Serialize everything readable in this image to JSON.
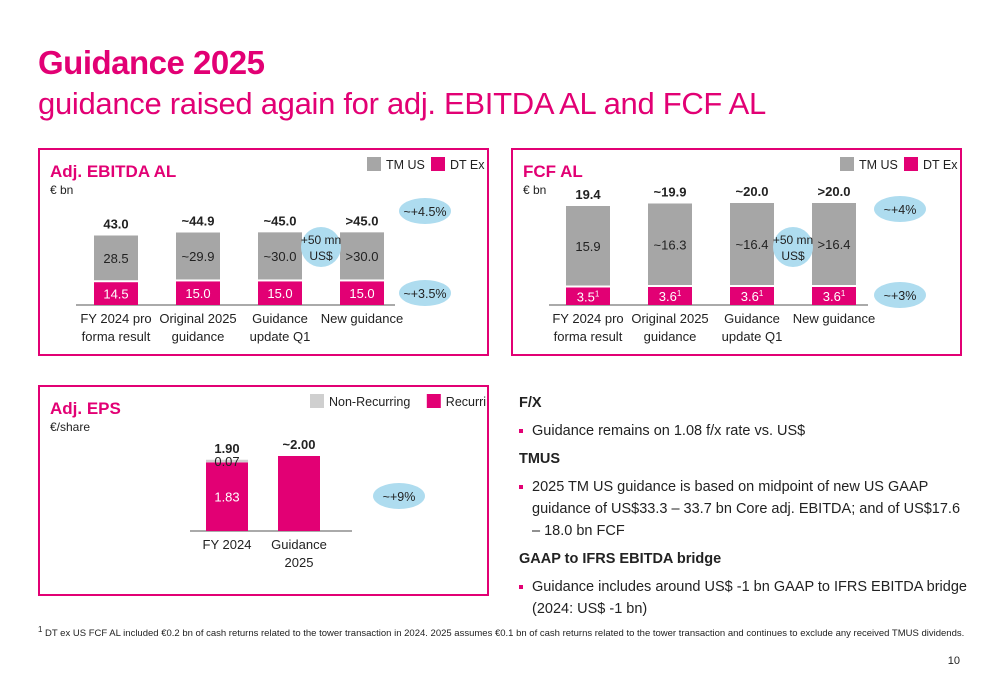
{
  "header": {
    "title": "Guidance 2025",
    "subtitle": "guidance raised again for adj. EBITDA AL and FCF AL"
  },
  "colors": {
    "magenta": "#e20074",
    "grey": "#a6a6a6",
    "light_grey": "#cfcfcf",
    "bubble": "#aedcef"
  },
  "chart_data": [
    {
      "type": "bar",
      "title": "Adj. EBITDA AL",
      "unit": "€ bn",
      "stacked": true,
      "legend": [
        "TM US",
        "DT Ex US"
      ],
      "categories": [
        "FY 2024 pro forma result",
        "Original 2025 guidance",
        "Guidance update Q1",
        "New guidance"
      ],
      "category_lines": [
        [
          "FY 2024 pro",
          "forma result"
        ],
        [
          "Original 2025",
          "guidance"
        ],
        [
          "Guidance",
          "update Q1"
        ],
        [
          "New guidance"
        ]
      ],
      "series": [
        {
          "name": "DT Ex US",
          "values": [
            14.5,
            15.0,
            15.0,
            15.0
          ],
          "labels": [
            "14.5",
            "15.0",
            "15.0",
            "15.0"
          ]
        },
        {
          "name": "TM US",
          "values": [
            28.5,
            29.9,
            30.0,
            30.0
          ],
          "labels": [
            "28.5",
            "~29.9",
            "~30.0",
            ">30.0"
          ]
        }
      ],
      "totals": [
        "43.0",
        "~44.9",
        "~45.0",
        ">45.0"
      ],
      "callout": [
        "+50 mn",
        "US$"
      ],
      "bubbles": {
        "total": "~+4.5%",
        "bottom": "~+3.5%"
      }
    },
    {
      "type": "bar",
      "title": "FCF AL",
      "unit": "€ bn",
      "stacked": true,
      "legend": [
        "TM US",
        "DT Ex US"
      ],
      "categories": [
        "FY 2024 pro forma result",
        "Original 2025 guidance",
        "Guidance update Q1",
        "New guidance"
      ],
      "category_lines": [
        [
          "FY 2024 pro",
          "forma result"
        ],
        [
          "Original 2025",
          "guidance"
        ],
        [
          "Guidance",
          "update Q1"
        ],
        [
          "New guidance"
        ]
      ],
      "series": [
        {
          "name": "DT Ex US",
          "values": [
            3.5,
            3.6,
            3.6,
            3.6
          ],
          "labels": [
            "3.5",
            "3.6",
            "3.6",
            "3.6"
          ],
          "footnote_mark": "1"
        },
        {
          "name": "TM US",
          "values": [
            15.9,
            16.3,
            16.4,
            16.4
          ],
          "labels": [
            "15.9",
            "~16.3",
            "~16.4",
            ">16.4"
          ]
        }
      ],
      "totals": [
        "19.4",
        "~19.9",
        "~20.0",
        ">20.0"
      ],
      "callout": [
        "+50 mn",
        "US$"
      ],
      "bubbles": {
        "total": "~+4%",
        "bottom": "~+3%"
      }
    },
    {
      "type": "bar",
      "title": "Adj. EPS",
      "unit": "€/share",
      "stacked": true,
      "legend": [
        "Non-Recurring",
        "Recurring"
      ],
      "categories": [
        "FY 2024",
        "Guidance 2025"
      ],
      "category_lines": [
        [
          "FY 2024"
        ],
        [
          "Guidance",
          "2025"
        ]
      ],
      "series": [
        {
          "name": "Recurring",
          "values": [
            1.83,
            2.0
          ],
          "labels": [
            "1.83",
            ""
          ]
        },
        {
          "name": "Non-Recurring",
          "values": [
            0.07,
            0
          ],
          "labels": [
            "0.07",
            ""
          ]
        }
      ],
      "totals": [
        "1.90",
        "~2.00"
      ],
      "bubbles": {
        "total": "~+9%"
      }
    }
  ],
  "notes": [
    {
      "heading": "F/X",
      "bullets": [
        "Guidance remains on 1.08 f/x rate vs. US$"
      ]
    },
    {
      "heading": "TMUS",
      "bullets": [
        "2025 TM US guidance is based on midpoint of new US GAAP guidance of US$33.3 – 33.7 bn Core adj. EBITDA; and of US$17.6 – 18.0 bn FCF"
      ]
    },
    {
      "heading": "GAAP to IFRS EBITDA bridge",
      "bullets": [
        "Guidance includes around US$ -1 bn GAAP to IFRS EBITDA bridge (2024: US$ -1 bn)"
      ]
    }
  ],
  "footnote": {
    "mark": "1",
    "text": "DT ex US FCF AL included €0.2 bn of cash returns related to the tower transaction in 2024. 2025 assumes €0.1 bn of cash returns related to the tower transaction and continues to exclude any received TMUS dividends."
  },
  "page_number": "10"
}
